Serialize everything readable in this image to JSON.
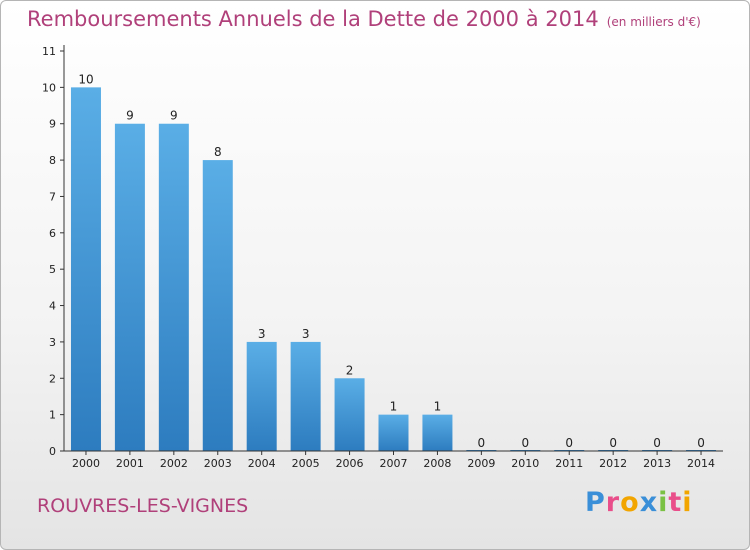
{
  "header": {
    "title": "Remboursements Annuels de la Dette de 2000 à 2014",
    "unit": "(en milliers d'€)"
  },
  "footer": {
    "commune": "ROUVRES-LES-VIGNES",
    "logo": "Proxiti",
    "logo_colors": [
      "#3a8fd8",
      "#e94e8a",
      "#f2a500",
      "#3a8fd8",
      "#7ac143",
      "#e94e8a",
      "#f2a500"
    ]
  },
  "colors": {
    "bar_light": "#5aaee6",
    "bar_dark": "#2d7cbf",
    "axis": "#333333",
    "text": "#222222"
  },
  "chart_data": {
    "type": "bar",
    "categories": [
      "2000",
      "2001",
      "2002",
      "2003",
      "2004",
      "2005",
      "2006",
      "2007",
      "2008",
      "2009",
      "2010",
      "2011",
      "2012",
      "2013",
      "2014"
    ],
    "values": [
      10,
      9,
      9,
      8,
      3,
      3,
      2,
      1,
      1,
      0,
      0,
      0,
      0,
      0,
      0
    ],
    "data_labels": [
      "10",
      "9",
      "9",
      "8",
      "3",
      "3",
      "2",
      "1",
      "1",
      "0",
      "0",
      "0",
      "0",
      "0",
      "0"
    ],
    "ylim": [
      0,
      11
    ],
    "yticks": [
      0,
      1,
      2,
      3,
      4,
      5,
      6,
      7,
      8,
      9,
      10,
      11
    ],
    "grid": false
  }
}
